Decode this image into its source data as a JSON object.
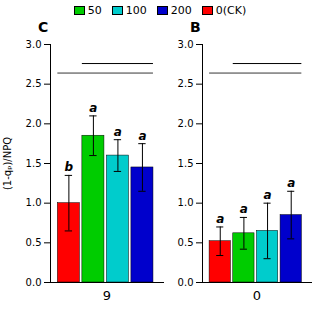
{
  "chart_data": [
    {
      "type": "bar",
      "title": "C",
      "xlabel": "9",
      "ylabel": "(1-qₚ)/NPQ",
      "categories": [
        null,
        null,
        null,
        null
      ],
      "values": [
        1.0,
        1.85,
        1.6,
        1.45
      ],
      "errors": [
        0.35,
        0.25,
        0.2,
        0.3
      ],
      "colors": [
        "#ff0000",
        "#00cc00",
        "#00cccc",
        "#0000cc"
      ],
      "annotations": [
        "b",
        "a",
        "a",
        "a"
      ],
      "ylim": [
        0,
        3.0
      ],
      "yticks": [
        {
          "value": 0.0,
          "label": "0.0"
        },
        0.5,
        {
          "value": 1.0,
          "label": "1.0"
        },
        1.5,
        {
          "value": 2.0,
          "label": "2.0"
        },
        2.5,
        {
          "value": 3.0,
          "label": "3.0"
        }
      ],
      "grid": false,
      "tick_labels": "y"
    },
    {
      "type": "bar",
      "title": "B",
      "xlabel": "0",
      "categories": [
        null,
        null,
        null,
        null
      ],
      "values": [
        0.52,
        0.62,
        0.65,
        0.85
      ],
      "errors": [
        0.18,
        0.2,
        0.35,
        0.3
      ],
      "colors": [
        "#ff0000",
        "#00cc00",
        "#00cccc",
        "#0000cc"
      ],
      "annotations": [
        "a",
        "a",
        "a",
        "a"
      ],
      "ylim": [
        0,
        3.0
      ],
      "yticks": [
        {
          "value": 0.0,
          "label": "0.0"
        },
        0.5,
        {
          "value": 1.0,
          "label": "1.0"
        },
        1.5,
        {
          "value": 2.0,
          "label": "2.0"
        },
        2.5,
        {
          "value": 3.0,
          "label": "3.0"
        }
      ],
      "grid": false,
      "tick_labels": "y"
    }
  ],
  "legend": "top",
  "series": [
    {
      "name": "50",
      "color": "#00cc00"
    },
    {
      "name": "100",
      "color": "#00cccc"
    },
    {
      "name": "200",
      "color": "#0000cc"
    },
    {
      "name": "0(CK)",
      "color": "#ff0000"
    }
  ]
}
